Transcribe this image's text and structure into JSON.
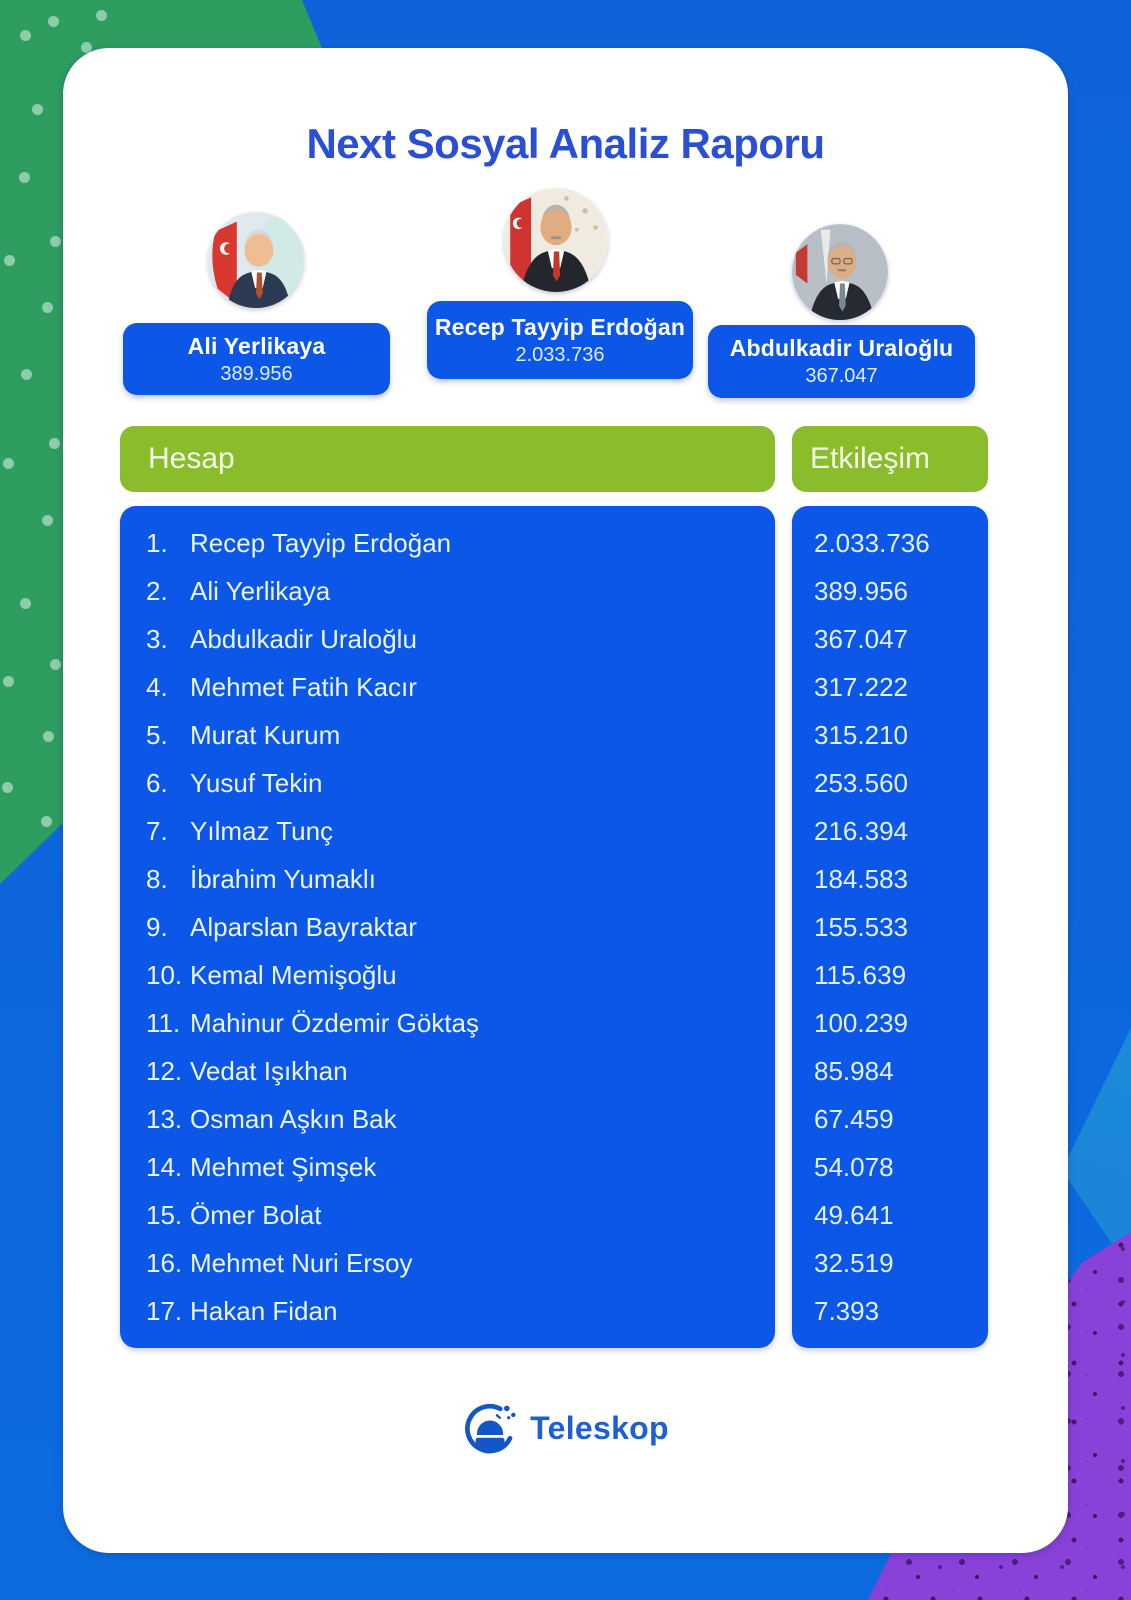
{
  "title": "Next Sosyal Analiz Raporu",
  "featured": [
    {
      "name": "Ali Yerlikaya",
      "value": "389.956"
    },
    {
      "name": "Recep Tayyip Erdoğan",
      "value": "2.033.736"
    },
    {
      "name": "Abdulkadir Uraloğlu",
      "value": "367.047"
    }
  ],
  "table": {
    "headers": {
      "account": "Hesap",
      "engagement": "Etkileşim"
    },
    "rows": [
      {
        "rank": "1.",
        "name": "Recep Tayyip Erdoğan",
        "value": "2.033.736"
      },
      {
        "rank": "2.",
        "name": "Ali Yerlikaya",
        "value": "389.956"
      },
      {
        "rank": "3.",
        "name": "Abdulkadir Uraloğlu",
        "value": "367.047"
      },
      {
        "rank": "4.",
        "name": "Mehmet Fatih Kacır",
        "value": "317.222"
      },
      {
        "rank": "5.",
        "name": "Murat Kurum",
        "value": "315.210"
      },
      {
        "rank": "6.",
        "name": "Yusuf Tekin",
        "value": "253.560"
      },
      {
        "rank": "7.",
        "name": "Yılmaz Tunç",
        "value": "216.394"
      },
      {
        "rank": "8.",
        "name": "İbrahim Yumaklı",
        "value": "184.583"
      },
      {
        "rank": "9.",
        "name": "Alparslan Bayraktar",
        "value": "155.533"
      },
      {
        "rank": "10.",
        "name": "Kemal Memişoğlu",
        "value": "115.639"
      },
      {
        "rank": "11.",
        "name": "Mahinur Özdemir Göktaş",
        "value": "100.239"
      },
      {
        "rank": "12.",
        "name": "Vedat Işıkhan",
        "value": "85.984"
      },
      {
        "rank": "13.",
        "name": "Osman Aşkın Bak",
        "value": "67.459"
      },
      {
        "rank": "14.",
        "name": "Mehmet Şimşek",
        "value": "54.078"
      },
      {
        "rank": "15.",
        "name": "Ömer Bolat",
        "value": "49.641"
      },
      {
        "rank": "16.",
        "name": "Mehmet Nuri Ersoy",
        "value": "32.519"
      },
      {
        "rank": "17.",
        "name": "Hakan Fidan",
        "value": "7.393"
      }
    ]
  },
  "footer": {
    "brand": "Teleskop"
  },
  "icons": {
    "brand_logo": "teleskop-observatory-dome-icon",
    "avatars": [
      "ali-yerlikaya-photo",
      "recep-tayyip-erdogan-photo",
      "abdulkadir-uraloglu-photo"
    ]
  },
  "colors": {
    "panel_blue": "#0c57e8",
    "header_green": "#8abc2b",
    "title_blue": "#2b4fd4",
    "brand_blue": "#1e60d2",
    "bg_blue": "#0d66dc",
    "bg_green": "#2f9c60",
    "bg_purple": "#8a41d8",
    "bg_cyan": "#1b86d8",
    "card_white": "#ffffff"
  },
  "chart_data": {
    "type": "table",
    "title": "Next Sosyal Analiz Raporu",
    "columns": [
      "Hesap",
      "Etkileşim"
    ],
    "rows": [
      [
        "Recep Tayyip Erdoğan",
        2033736
      ],
      [
        "Ali Yerlikaya",
        389956
      ],
      [
        "Abdulkadir Uraloğlu",
        367047
      ],
      [
        "Mehmet Fatih Kacır",
        317222
      ],
      [
        "Murat Kurum",
        315210
      ],
      [
        "Yusuf Tekin",
        253560
      ],
      [
        "Yılmaz Tunç",
        216394
      ],
      [
        "İbrahim Yumaklı",
        184583
      ],
      [
        "Alparslan Bayraktar",
        155533
      ],
      [
        "Kemal Memişoğlu",
        115639
      ],
      [
        "Mahinur Özdemir Göktaş",
        100239
      ],
      [
        "Vedat Işıkhan",
        85984
      ],
      [
        "Osman Aşkın Bak",
        67459
      ],
      [
        "Mehmet Şimşek",
        54078
      ],
      [
        "Ömer Bolat",
        49641
      ],
      [
        "Mehmet Nuri Ersoy",
        32519
      ],
      [
        "Hakan Fidan",
        7393
      ]
    ],
    "legend": false,
    "grid": false
  }
}
